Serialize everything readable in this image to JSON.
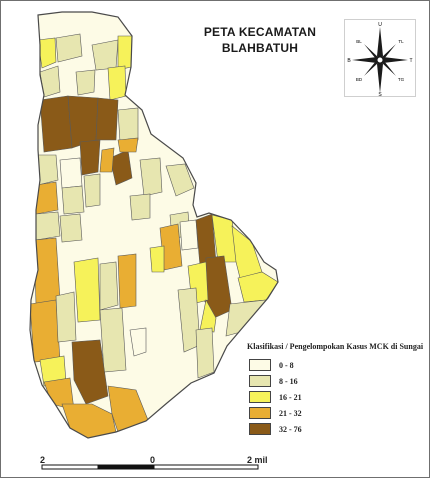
{
  "map": {
    "title_line1": "PETA KECAMATAN",
    "title_line2": "BLAHBATUH",
    "compass_letters": {
      "north": "U",
      "south": "S",
      "east": "T",
      "west": "B",
      "northwest": "BL",
      "northeast": "TL",
      "southwest": "BD",
      "southeast": "TG"
    },
    "colors": {
      "outline": "#5a5a5a",
      "class_0_8": "#fdfbe6",
      "class_8_16": "#e7e6b0",
      "class_16_21": "#f6f25a",
      "class_21_32": "#e9ae33",
      "class_32_76": "#8a5a18"
    },
    "legend": {
      "title": "Klasifikasi / Pengelompokan Kasus MCK di Sungai",
      "items": [
        {
          "label": "0 - 8",
          "color": "#fdfbe6"
        },
        {
          "label": "8 - 16",
          "color": "#e7e6b0"
        },
        {
          "label": "16 - 21",
          "color": "#f6f25a"
        },
        {
          "label": "21 - 32",
          "color": "#e9ae33"
        },
        {
          "label": "32 - 76",
          "color": "#8a5a18"
        }
      ]
    },
    "scale": {
      "left": "2",
      "middle": "0",
      "right": "2 mil"
    }
  }
}
